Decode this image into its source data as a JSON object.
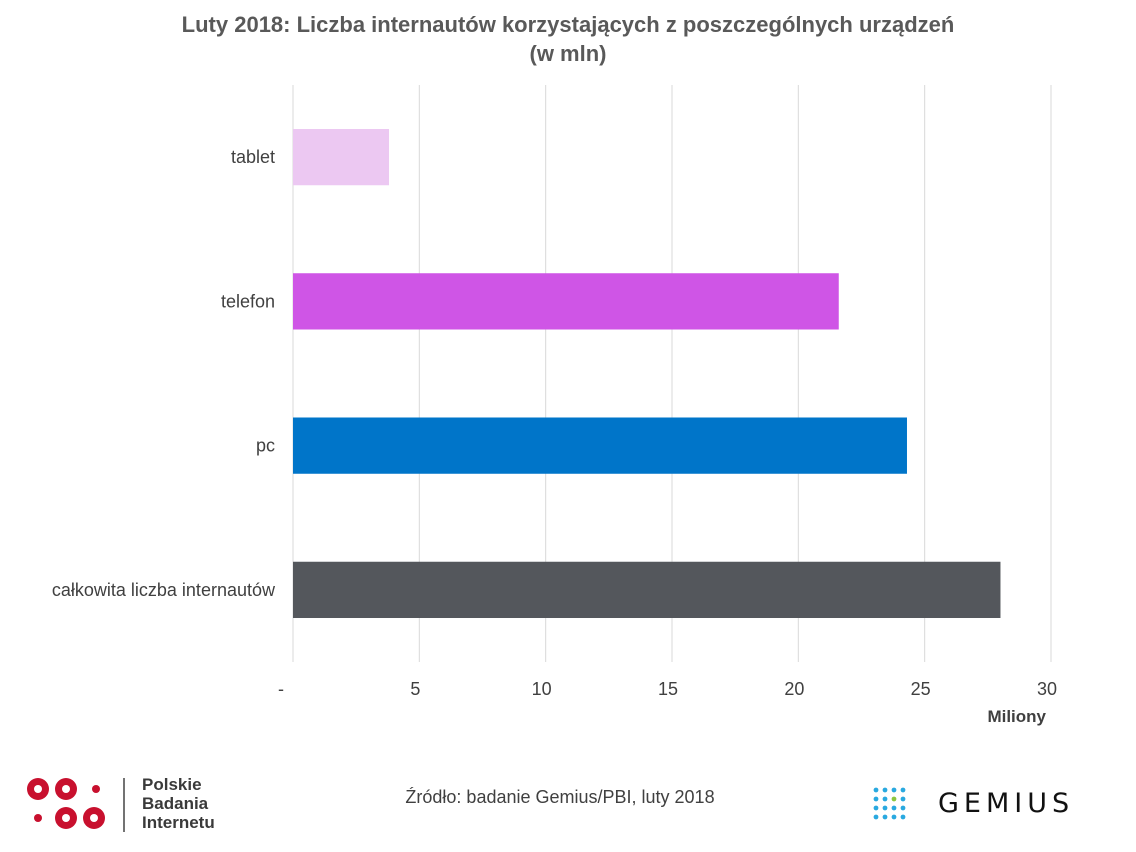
{
  "chart_data": {
    "type": "bar",
    "orientation": "horizontal",
    "title": "Luty 2018: Liczba internautów korzystających z poszczególnych urządzeń",
    "subtitle": "(w mln)",
    "categories": [
      "tablet",
      "telefon",
      "pc",
      "całkowita liczba internautów"
    ],
    "values": [
      3.8,
      21.6,
      24.3,
      28.0
    ],
    "colors": [
      "#ecc8f2",
      "#cf55e6",
      "#0075c9",
      "#54575c"
    ],
    "xlabel": "Miliony",
    "xlim": [
      0,
      30
    ],
    "xticks": [
      0,
      5,
      10,
      15,
      20,
      25,
      30
    ],
    "xtick_labels": [
      "-",
      "5",
      "10",
      "15",
      "20",
      "25",
      "30"
    ],
    "grid": "vertical",
    "legend": "none"
  },
  "footer": {
    "source": "Źródło: badanie Gemius/PBI, luty 2018",
    "pbi_logo_lines": [
      "Polskie",
      "Badania",
      "Internetu"
    ],
    "pbi_logo_color": "#c8102e",
    "gemius_logo_text": "GEMIUS",
    "gemius_dot_colors": [
      "#29a9e0",
      "#8cc63f"
    ]
  }
}
